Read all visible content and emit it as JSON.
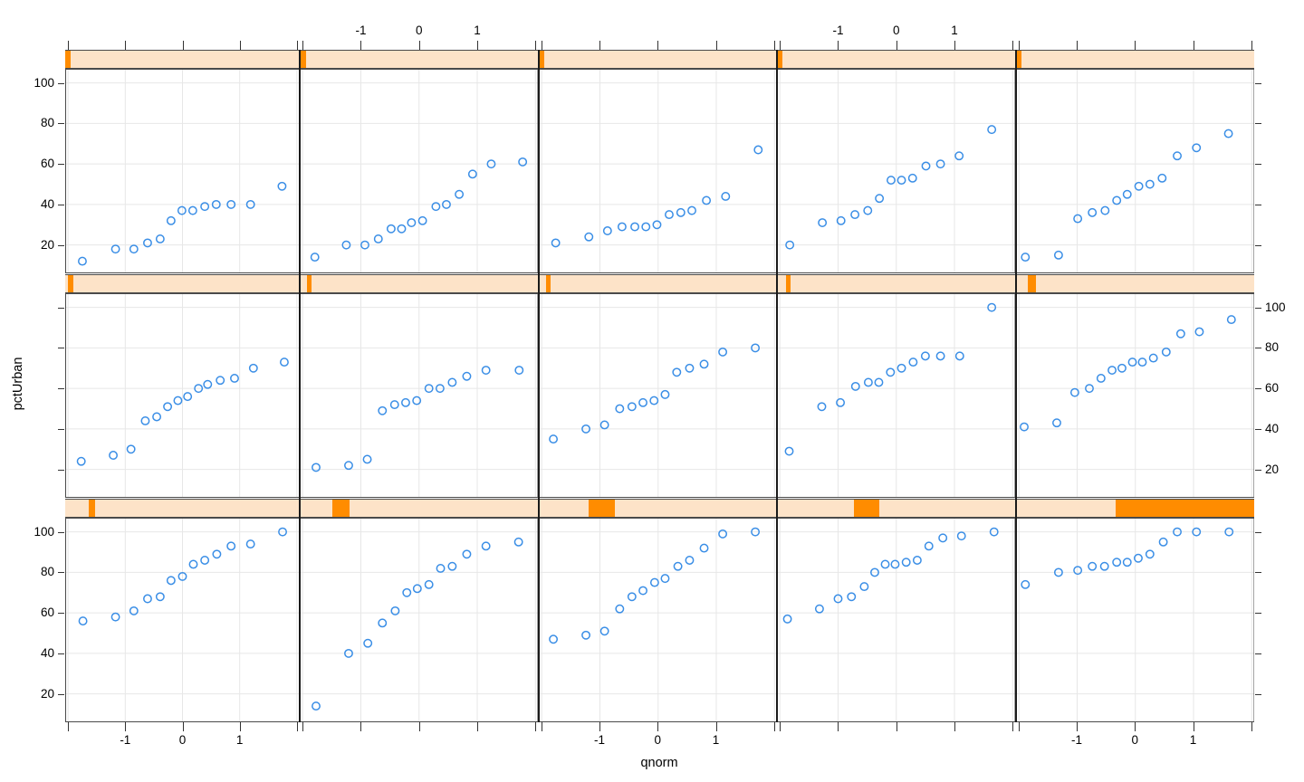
{
  "chart_data": {
    "type": "scatter",
    "title": "",
    "xlabel": "qnorm",
    "ylabel": "pctUrban",
    "grid": {
      "rows": 3,
      "cols": 5,
      "gridlines": true,
      "legend": "none"
    },
    "xlim": [
      -2.05,
      2.05
    ],
    "ylim": [
      6,
      107
    ],
    "x_ticks": [
      -2,
      -1,
      0,
      1,
      2
    ],
    "x_labeled_ticks": [
      -1,
      0,
      1
    ],
    "x_label_texts": [
      "-1",
      "0",
      "1"
    ],
    "y_ticks": [
      20,
      40,
      60,
      80,
      100
    ],
    "y_label_texts": [
      "20",
      "40",
      "60",
      "80",
      "100"
    ],
    "top_labeled_columns": [
      2,
      4
    ],
    "bottom_labeled_columns": [
      1,
      3,
      5
    ],
    "y_label_side_by_row": [
      "left",
      "right",
      "left"
    ],
    "colors": {
      "point": "#3A8EE6",
      "gridline": "#E7E7E7",
      "strip_bg": "#FDE3C8",
      "strip_block": "#FF8C00",
      "border": "#4A4A4A",
      "text": "#000000"
    },
    "panels": [
      {
        "row": 1,
        "col": 1,
        "strip_block": {
          "left": 0.0,
          "width": 0.025
        },
        "qnorm": [
          -1.75,
          -1.17,
          -0.85,
          -0.61,
          -0.39,
          -0.2,
          -0.01,
          0.18,
          0.39,
          0.59,
          0.85,
          1.19,
          1.74
        ],
        "pctUrban": [
          12,
          18,
          18,
          21,
          23,
          32,
          37,
          37,
          39,
          40,
          40,
          40,
          49
        ]
      },
      {
        "row": 1,
        "col": 2,
        "strip_block": {
          "left": 0.0,
          "width": 0.025
        },
        "qnorm": [
          -1.79,
          -1.25,
          -0.93,
          -0.7,
          -0.48,
          -0.3,
          -0.13,
          0.06,
          0.29,
          0.47,
          0.69,
          0.92,
          1.24,
          1.78
        ],
        "pctUrban": [
          14,
          20,
          20,
          23,
          28,
          28,
          31,
          32,
          39,
          40,
          45,
          55,
          60,
          61
        ]
      },
      {
        "row": 1,
        "col": 3,
        "strip_block": {
          "left": 0.0,
          "width": 0.025
        },
        "qnorm": [
          -1.76,
          -1.19,
          -0.87,
          -0.62,
          -0.4,
          -0.21,
          -0.02,
          0.19,
          0.39,
          0.58,
          0.83,
          1.16,
          1.72
        ],
        "pctUrban": [
          21,
          24,
          27,
          29,
          29,
          29,
          30,
          35,
          36,
          37,
          42,
          44,
          67
        ]
      },
      {
        "row": 1,
        "col": 4,
        "strip_block": {
          "left": 0.0,
          "width": 0.022
        },
        "qnorm": [
          -1.83,
          -1.27,
          -0.95,
          -0.71,
          -0.49,
          -0.29,
          -0.09,
          0.09,
          0.28,
          0.51,
          0.76,
          1.08,
          1.64
        ],
        "pctUrban": [
          20,
          31,
          32,
          35,
          37,
          43,
          52,
          52,
          53,
          59,
          60,
          64,
          77
        ]
      },
      {
        "row": 1,
        "col": 5,
        "strip_block": {
          "left": 0.0,
          "width": 0.025
        },
        "qnorm": [
          -1.89,
          -1.32,
          -0.99,
          -0.74,
          -0.52,
          -0.32,
          -0.14,
          0.06,
          0.25,
          0.46,
          0.72,
          1.05,
          1.6
        ],
        "pctUrban": [
          14,
          15,
          33,
          36,
          37,
          42,
          45,
          49,
          50,
          53,
          64,
          68,
          75
        ]
      },
      {
        "row": 2,
        "col": 1,
        "strip_block": {
          "left": 0.012,
          "width": 0.023
        },
        "qnorm": [
          -1.77,
          -1.21,
          -0.9,
          -0.65,
          -0.45,
          -0.26,
          -0.08,
          0.09,
          0.28,
          0.44,
          0.66,
          0.91,
          1.24,
          1.78
        ],
        "pctUrban": [
          24,
          27,
          30,
          44,
          46,
          51,
          54,
          56,
          60,
          62,
          64,
          65,
          70,
          73
        ]
      },
      {
        "row": 2,
        "col": 2,
        "strip_block": {
          "left": 0.03,
          "width": 0.021
        },
        "qnorm": [
          -1.77,
          -1.21,
          -0.89,
          -0.63,
          -0.42,
          -0.23,
          -0.04,
          0.17,
          0.36,
          0.57,
          0.82,
          1.15,
          1.72
        ],
        "pctUrban": [
          21,
          22,
          25,
          49,
          52,
          53,
          54,
          60,
          60,
          63,
          66,
          69,
          69
        ]
      },
      {
        "row": 2,
        "col": 3,
        "strip_block": {
          "left": 0.031,
          "width": 0.02
        },
        "qnorm": [
          -1.8,
          -1.24,
          -0.92,
          -0.66,
          -0.45,
          -0.26,
          -0.07,
          0.12,
          0.32,
          0.54,
          0.79,
          1.11,
          1.67
        ],
        "pctUrban": [
          35,
          40,
          42,
          50,
          51,
          53,
          54,
          57,
          68,
          70,
          72,
          78,
          80
        ]
      },
      {
        "row": 2,
        "col": 4,
        "strip_block": {
          "left": 0.038,
          "width": 0.019
        },
        "qnorm": [
          -1.84,
          -1.28,
          -0.96,
          -0.7,
          -0.48,
          -0.3,
          -0.1,
          0.09,
          0.29,
          0.5,
          0.76,
          1.09,
          1.64
        ],
        "pctUrban": [
          29,
          51,
          53,
          61,
          63,
          63,
          68,
          70,
          73,
          76,
          76,
          76,
          100
        ]
      },
      {
        "row": 2,
        "col": 5,
        "strip_block": {
          "left": 0.052,
          "width": 0.033
        },
        "qnorm": [
          -1.91,
          -1.35,
          -1.04,
          -0.79,
          -0.59,
          -0.4,
          -0.23,
          -0.05,
          0.12,
          0.31,
          0.53,
          0.78,
          1.1,
          1.65
        ],
        "pctUrban": [
          41,
          43,
          58,
          60,
          65,
          69,
          70,
          73,
          73,
          75,
          78,
          87,
          88,
          94
        ]
      },
      {
        "row": 3,
        "col": 1,
        "strip_block": {
          "left": 0.102,
          "width": 0.025
        },
        "qnorm": [
          -1.74,
          -1.17,
          -0.85,
          -0.61,
          -0.39,
          -0.2,
          0.0,
          0.19,
          0.39,
          0.6,
          0.85,
          1.19,
          1.75
        ],
        "pctUrban": [
          56,
          58,
          61,
          67,
          68,
          76,
          78,
          84,
          86,
          89,
          93,
          94,
          100
        ]
      },
      {
        "row": 3,
        "col": 2,
        "strip_block": {
          "left": 0.137,
          "width": 0.073
        },
        "qnorm": [
          -1.77,
          -1.21,
          -0.88,
          -0.63,
          -0.41,
          -0.21,
          -0.03,
          0.17,
          0.37,
          0.57,
          0.82,
          1.15,
          1.71
        ],
        "pctUrban": [
          14,
          40,
          45,
          55,
          61,
          70,
          72,
          74,
          82,
          83,
          89,
          93,
          95
        ]
      },
      {
        "row": 3,
        "col": 3,
        "strip_block": {
          "left": 0.209,
          "width": 0.11
        },
        "qnorm": [
          -1.8,
          -1.24,
          -0.92,
          -0.66,
          -0.45,
          -0.26,
          -0.06,
          0.12,
          0.34,
          0.54,
          0.79,
          1.11,
          1.67
        ],
        "pctUrban": [
          47,
          49,
          51,
          62,
          68,
          71,
          75,
          77,
          83,
          86,
          92,
          99,
          100
        ]
      },
      {
        "row": 3,
        "col": 4,
        "strip_block": {
          "left": 0.322,
          "width": 0.107
        },
        "qnorm": [
          -1.87,
          -1.32,
          -1.0,
          -0.77,
          -0.55,
          -0.37,
          -0.19,
          -0.02,
          0.17,
          0.36,
          0.56,
          0.8,
          1.12,
          1.68
        ],
        "pctUrban": [
          57,
          62,
          67,
          68,
          73,
          80,
          84,
          84,
          85,
          86,
          93,
          97,
          98,
          100
        ]
      },
      {
        "row": 3,
        "col": 5,
        "strip_block": {
          "left": 0.421,
          "width": 0.579
        },
        "qnorm": [
          -1.89,
          -1.32,
          -0.99,
          -0.74,
          -0.53,
          -0.32,
          -0.14,
          0.05,
          0.25,
          0.48,
          0.72,
          1.05,
          1.61
        ],
        "pctUrban": [
          74,
          80,
          81,
          83,
          83,
          85,
          85,
          87,
          89,
          95,
          100,
          100,
          100
        ]
      }
    ]
  }
}
